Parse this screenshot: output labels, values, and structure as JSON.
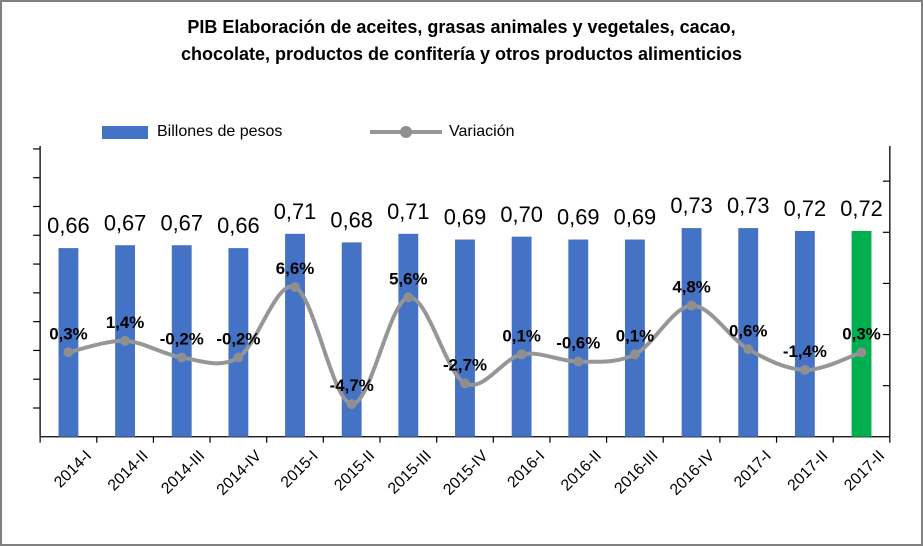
{
  "window": {
    "background": "#FFFFFF",
    "border_color": "#808080"
  },
  "chart_data": {
    "type": "bar",
    "title": "PIB Elaboración de aceites, grasas animales y vegetales, cacao, chocolate, productos de confitería y otros productos alimenticios",
    "title_lines": [
      "PIB Elaboración de aceites, grasas animales y vegetales, cacao,",
      "chocolate, productos de confitería y otros productos alimenticios"
    ],
    "categories": [
      "2014-I",
      "2014-II",
      "2014-III",
      "2014-IV",
      "2015-I",
      "2015-II",
      "2015-III",
      "2015-IV",
      "2016-I",
      "2016-II",
      "2016-III",
      "2016-IV",
      "2017-I",
      "2017-II",
      "2017-II"
    ],
    "series": [
      {
        "name": "Billones de pesos",
        "type": "bar",
        "color": "#4472C4",
        "values": [
          0.66,
          0.67,
          0.67,
          0.66,
          0.71,
          0.68,
          0.71,
          0.69,
          0.7,
          0.69,
          0.69,
          0.73,
          0.73,
          0.72,
          0.72
        ],
        "labels": [
          "0,66",
          "0,67",
          "0,67",
          "0,66",
          "0,71",
          "0,68",
          "0,71",
          "0,69",
          "0,70",
          "0,69",
          "0,69",
          "0,73",
          "0,73",
          "0,72",
          "0,72"
        ],
        "highlight": {
          "index": 14,
          "color": "#00B050"
        }
      },
      {
        "name": "Variación",
        "type": "line",
        "color": "#969696",
        "marker_color": "#8F8F8F",
        "values": [
          0.3,
          1.4,
          -0.2,
          -0.2,
          6.6,
          -4.7,
          5.6,
          -2.7,
          0.1,
          -0.6,
          0.1,
          4.8,
          0.6,
          -1.4,
          0.3
        ],
        "labels": [
          "0,3%",
          "1,4%",
          "-0,2%",
          "-0,2%",
          "6,6%",
          "-4,7%",
          "5,6%",
          "-2,7%",
          "0,1%",
          "-0,6%",
          "0,1%",
          "4,8%",
          "0,6%",
          "-1,4%",
          "0,3%"
        ]
      }
    ],
    "legend_position": "top",
    "grid": false,
    "axes": {
      "left_axis_tick_labels_visible": false,
      "right_axis_tick_labels_visible": false,
      "x_labels_rotated_degrees": 45
    },
    "text_color": "#000000",
    "axis_color": "#000000"
  }
}
